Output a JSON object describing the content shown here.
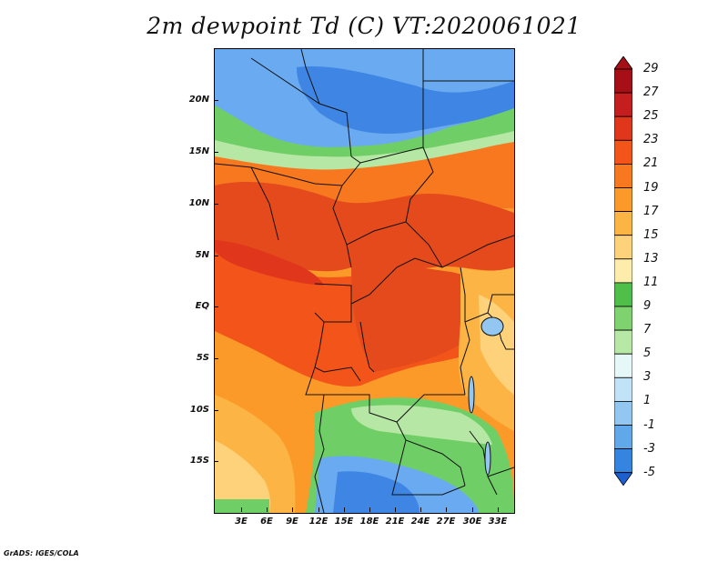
{
  "title": "2m dewpoint Td (C) VT:2020061021",
  "credit": "GrADS: IGES/COLA",
  "lat_labels": [
    "20N",
    "15N",
    "10N",
    "5N",
    "EQ",
    "5S",
    "10S",
    "15S"
  ],
  "lon_labels": [
    "3E",
    "6E",
    "9E",
    "12E",
    "15E",
    "18E",
    "21E",
    "24E",
    "27E",
    "30E",
    "33E"
  ],
  "colorbar": {
    "labels": [
      "29",
      "27",
      "25",
      "23",
      "21",
      "19",
      "17",
      "15",
      "13",
      "11",
      "9",
      "7",
      "5",
      "3",
      "1",
      "-1",
      "-3",
      "-5"
    ],
    "colors": [
      "#a50f15",
      "#c41e1e",
      "#e0361b",
      "#f2541a",
      "#f7781f",
      "#fb9a28",
      "#fcb545",
      "#fdd27a",
      "#feedaa",
      "#4fbf4a",
      "#7fd36e",
      "#b7e8a6",
      "#e6f7f8",
      "#c2e2f8",
      "#93c7f2",
      "#60a8ea",
      "#3584e0",
      "#1e5fd0"
    ]
  },
  "map": {
    "region_colors": {
      "desert_blue": "#6aaaf0",
      "deep_blue": "#3f86e4",
      "green": "#6fcf66",
      "light_green": "#b6e7a4",
      "sahel_orange": "#f7781f",
      "hot_red": "#e44a1c",
      "red_orange": "#f2541a",
      "orange": "#fb9a28",
      "light_orange": "#fcb545",
      "pale_yellow": "#fdd27a"
    }
  }
}
